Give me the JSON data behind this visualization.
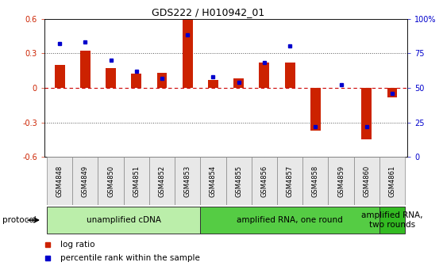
{
  "title": "GDS222 / H010942_01",
  "samples": [
    "GSM4848",
    "GSM4849",
    "GSM4850",
    "GSM4851",
    "GSM4852",
    "GSM4853",
    "GSM4854",
    "GSM4855",
    "GSM4856",
    "GSM4857",
    "GSM4858",
    "GSM4859",
    "GSM4860",
    "GSM4861"
  ],
  "log_ratio": [
    0.2,
    0.32,
    0.17,
    0.12,
    0.13,
    0.59,
    0.07,
    0.08,
    0.22,
    0.22,
    -0.37,
    0.0,
    -0.45,
    -0.08
  ],
  "percentile": [
    82,
    83,
    70,
    62,
    57,
    88,
    58,
    54,
    68,
    80,
    22,
    52,
    22,
    46
  ],
  "ylim_left": [
    -0.6,
    0.6
  ],
  "ylim_right": [
    0,
    100
  ],
  "yticks_left": [
    -0.6,
    -0.3,
    0.0,
    0.3,
    0.6
  ],
  "yticks_right": [
    0,
    25,
    50,
    75,
    100
  ],
  "ytick_labels_right": [
    "0",
    "25",
    "50",
    "75",
    "100%"
  ],
  "bar_color": "#CC2200",
  "dot_color": "#0000CC",
  "hline_color": "#CC0000",
  "dotted_color": "#555555",
  "bg_color": "#FFFFFF",
  "protocol_groups": [
    {
      "label": "unamplified cDNA",
      "start": 0,
      "end": 5,
      "color": "#BBEEAA"
    },
    {
      "label": "amplified RNA, one round",
      "start": 6,
      "end": 12,
      "color": "#55CC44"
    },
    {
      "label": "amplified RNA,\ntwo rounds",
      "start": 13,
      "end": 13,
      "color": "#33BB22"
    }
  ],
  "protocol_label": "protocol",
  "legend_items": [
    {
      "label": "log ratio",
      "color": "#CC2200"
    },
    {
      "label": "percentile rank within the sample",
      "color": "#0000CC"
    }
  ],
  "bar_width": 0.4
}
